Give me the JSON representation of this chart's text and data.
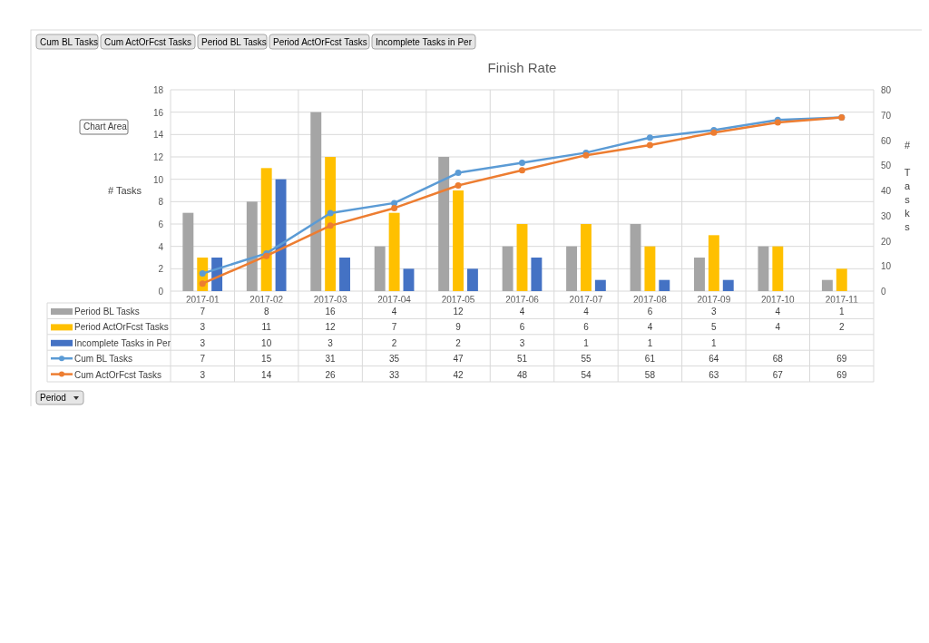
{
  "chart_data": {
    "type": "bar",
    "title": "Finish Rate",
    "ylabel": "# Tasks",
    "y2label": "# Tasks",
    "categories": [
      "2017-01",
      "2017-02",
      "2017-03",
      "2017-04",
      "2017-05",
      "2017-06",
      "2017-07",
      "2017-08",
      "2017-09",
      "2017-10",
      "2017-11"
    ],
    "series": [
      {
        "name": "Period BL Tasks",
        "color": "#a5a5a5",
        "values": [
          7,
          8,
          16,
          4,
          12,
          4,
          4,
          6,
          3,
          4,
          1
        ]
      },
      {
        "name": "Period ActOrFcst Tasks",
        "color": "#ffc000",
        "values": [
          3,
          11,
          12,
          7,
          9,
          6,
          6,
          4,
          5,
          4,
          2
        ]
      },
      {
        "name": "Incomplete Tasks in Per",
        "color": "#4472c4",
        "values": [
          3,
          10,
          3,
          2,
          2,
          3,
          1,
          1,
          1,
          null,
          null
        ]
      },
      {
        "name": "Cum BL Tasks",
        "type": "line",
        "axis": "y2",
        "color": "#5b9bd5",
        "values": [
          7,
          15,
          31,
          35,
          47,
          51,
          55,
          61,
          64,
          68,
          69
        ]
      },
      {
        "name": "Cum ActOrFcst Tasks",
        "type": "line",
        "axis": "y2",
        "color": "#ed7d31",
        "values": [
          3,
          14,
          26,
          33,
          42,
          48,
          54,
          58,
          63,
          67,
          69
        ]
      }
    ],
    "ylim": [
      0,
      18
    ],
    "yticks": [
      0,
      2,
      4,
      6,
      8,
      10,
      12,
      14,
      16,
      18
    ],
    "y2lim": [
      0,
      80
    ],
    "y2ticks": [
      0,
      10,
      20,
      30,
      40,
      50,
      60,
      70,
      80
    ],
    "grid": true,
    "legend": "bottom",
    "data_labels": true,
    "marker": "circle",
    "line_style": "solid",
    "annotations": [
      "Cum BL Tasks",
      "Cum ActOrFcst Tasks",
      "Period BL Tasks",
      "Period ActOrFcst Tasks",
      "Incomplete Tasks in Per",
      "Period",
      "Chart Area"
    ]
  }
}
